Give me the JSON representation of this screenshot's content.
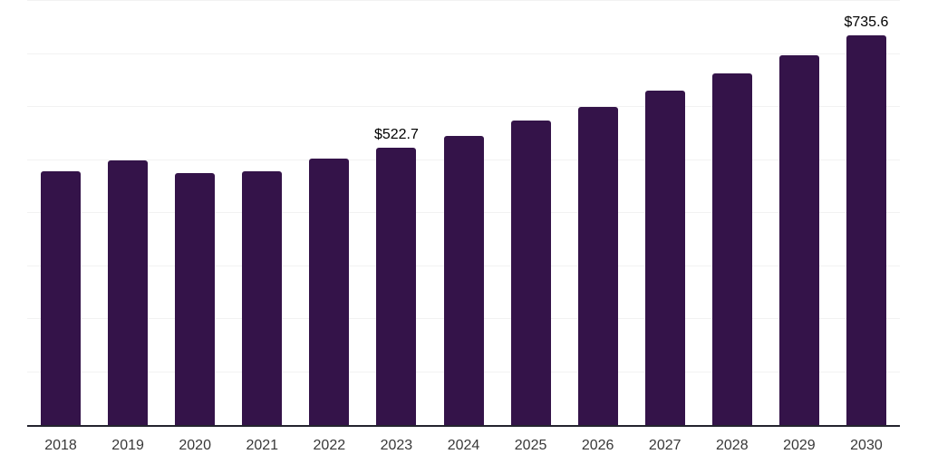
{
  "chart_data": {
    "type": "bar",
    "title": "",
    "xlabel": "",
    "ylabel": "",
    "categories": [
      "2018",
      "2019",
      "2020",
      "2021",
      "2022",
      "2023",
      "2024",
      "2025",
      "2026",
      "2027",
      "2028",
      "2029",
      "2030"
    ],
    "values": [
      478,
      500,
      475,
      479,
      503,
      522.7,
      546,
      574,
      600,
      631,
      663,
      697,
      735.6
    ],
    "annotations": [
      {
        "category": "2023",
        "text": "$522.7"
      },
      {
        "category": "2030",
        "text": "$735.6"
      }
    ],
    "ylim": [
      0,
      800
    ],
    "grid": true,
    "gridline_step": 100,
    "y_axis_labels_visible": false,
    "legend_position": "none",
    "colors": {
      "bar": "#341349",
      "axis_line": "#24242e",
      "gridline": "#f2f2f2",
      "tick_label": "#383838",
      "annotation": "#000000",
      "background": "#ffffff"
    }
  }
}
